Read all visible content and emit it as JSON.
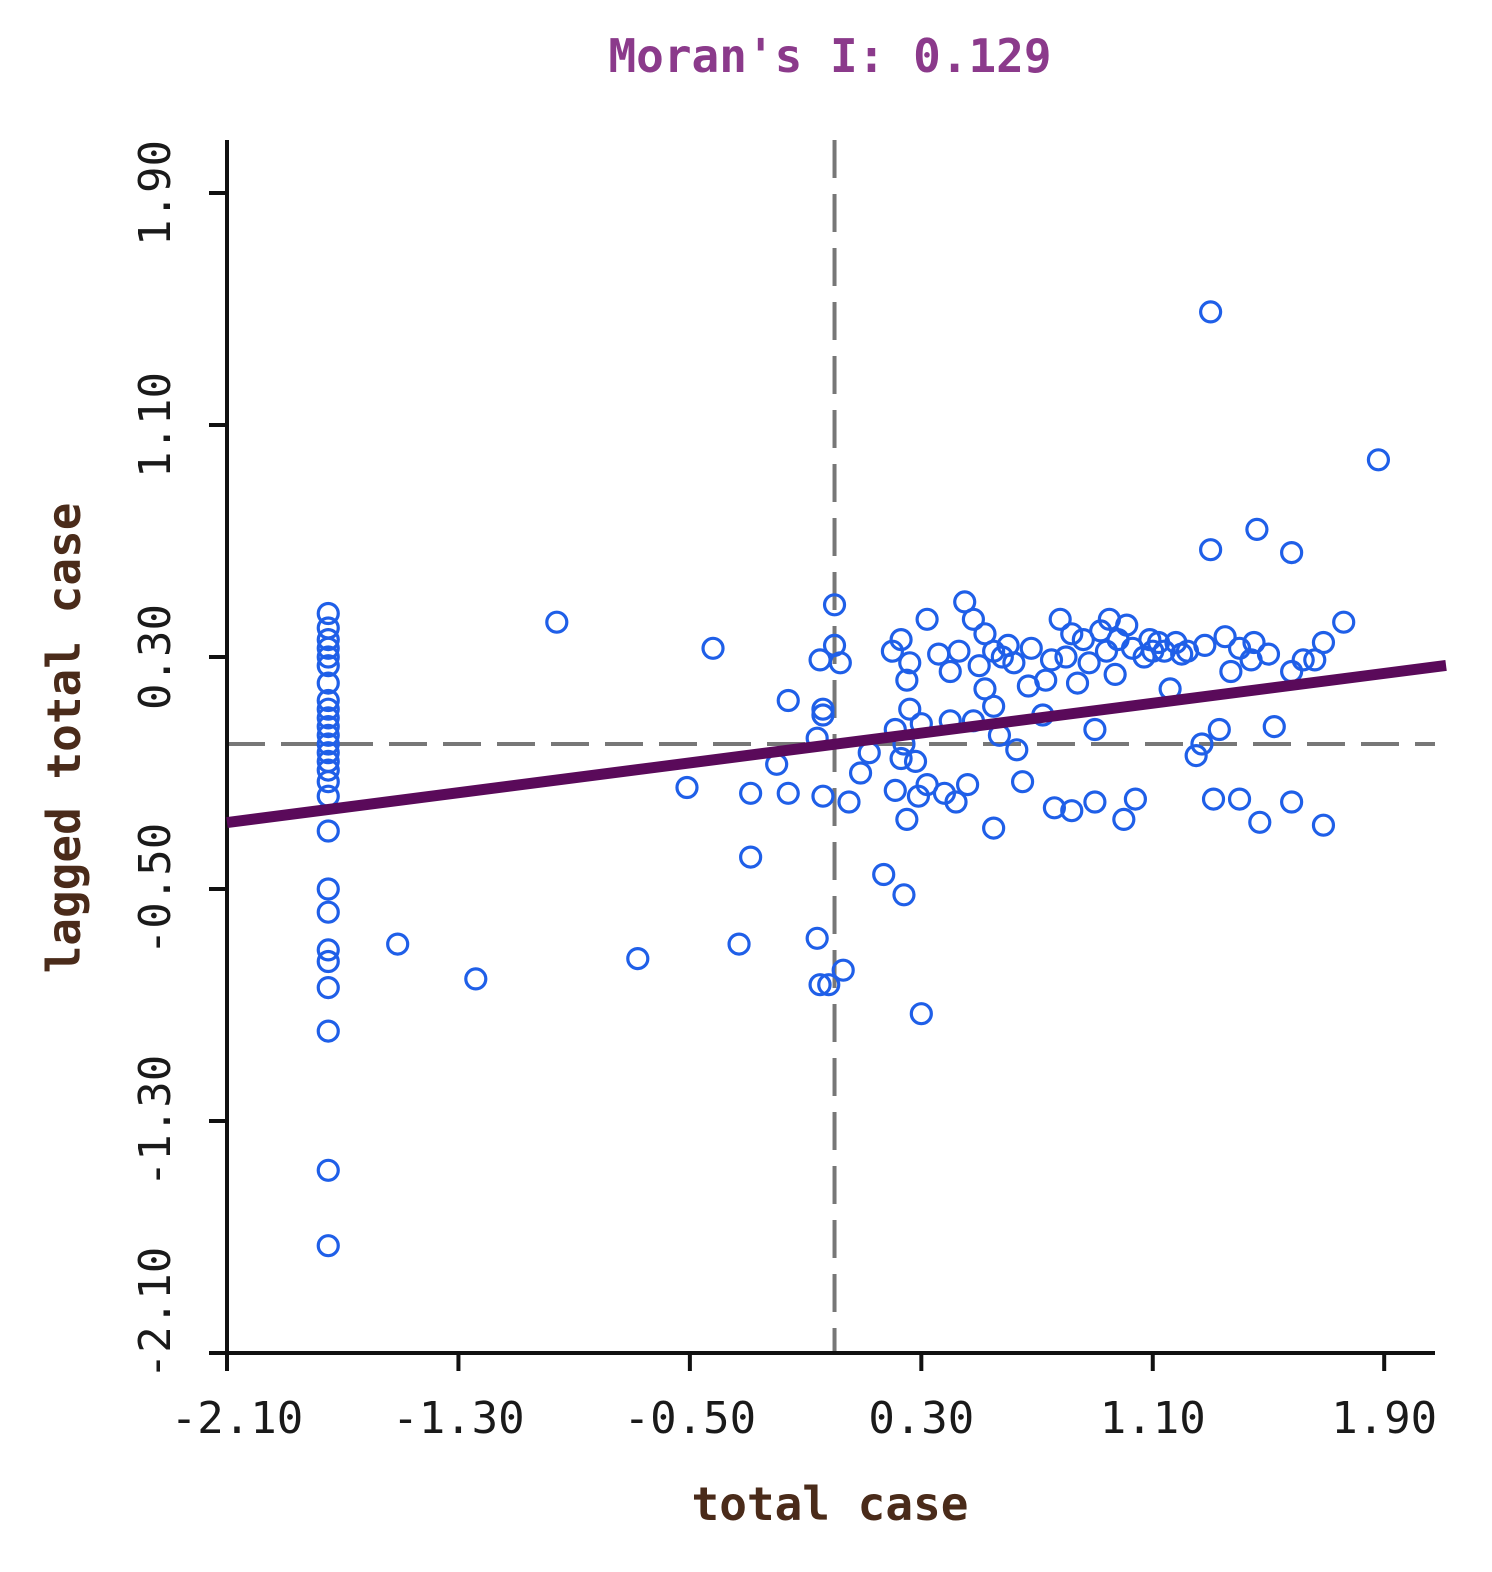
{
  "chart_data": {
    "type": "scatter",
    "title": "Moran's I: 0.129",
    "xlabel": "total case",
    "ylabel": "lagged total case",
    "xlim": [
      -2.1,
      2.1
    ],
    "ylim": [
      -2.1,
      2.1
    ],
    "x_ticks": [
      -2.1,
      -1.3,
      -0.5,
      0.3,
      1.1,
      1.9
    ],
    "x_tick_labels": [
      "-2.10",
      "-1.30",
      "-0.50",
      "0.30",
      "1.10",
      "1.90"
    ],
    "y_ticks": [
      -2.1,
      -1.3,
      -0.5,
      0.3,
      1.1,
      1.9
    ],
    "y_tick_labels": [
      "-2.10",
      "-1.30",
      "-0.50",
      "0.30",
      "1.10",
      "1.90"
    ],
    "slope": 0.129,
    "mean_x": 0.0,
    "mean_y": 0.0,
    "colors": {
      "points": "#1f5fe8",
      "regression": "#5a0a5a",
      "reference": "#777777",
      "axis": "#111111",
      "title": "#8b3a8b"
    },
    "points": [
      [
        -1.75,
        0.45
      ],
      [
        -1.75,
        0.4
      ],
      [
        -1.75,
        0.36
      ],
      [
        -1.75,
        0.33
      ],
      [
        -1.75,
        0.3
      ],
      [
        -1.75,
        0.27
      ],
      [
        -1.75,
        0.21
      ],
      [
        -1.75,
        0.15
      ],
      [
        -1.75,
        0.12
      ],
      [
        -1.75,
        0.09
      ],
      [
        -1.75,
        0.06
      ],
      [
        -1.75,
        0.03
      ],
      [
        -1.75,
        0.0
      ],
      [
        -1.75,
        -0.03
      ],
      [
        -1.75,
        -0.06
      ],
      [
        -1.75,
        -0.09
      ],
      [
        -1.75,
        -0.13
      ],
      [
        -1.75,
        -0.18
      ],
      [
        -1.75,
        -0.3
      ],
      [
        -1.75,
        -0.5
      ],
      [
        -1.75,
        -0.58
      ],
      [
        -1.75,
        -0.71
      ],
      [
        -1.75,
        -0.75
      ],
      [
        -1.75,
        -0.84
      ],
      [
        -1.75,
        -0.99
      ],
      [
        -1.75,
        -1.47
      ],
      [
        -1.75,
        -1.73
      ],
      [
        -1.51,
        -0.69
      ],
      [
        -1.24,
        -0.81
      ],
      [
        -0.96,
        0.42
      ],
      [
        -0.68,
        -0.74
      ],
      [
        -0.42,
        0.33
      ],
      [
        -0.51,
        -0.15
      ],
      [
        -0.33,
        -0.69
      ],
      [
        -0.29,
        -0.17
      ],
      [
        -0.29,
        -0.39
      ],
      [
        -0.2,
        -0.07
      ],
      [
        -0.16,
        -0.17
      ],
      [
        -0.16,
        0.15
      ],
      [
        -0.06,
        -0.67
      ],
      [
        -0.05,
        0.29
      ],
      [
        -0.04,
        0.12
      ],
      [
        -0.04,
        0.1
      ],
      [
        -0.04,
        -0.18
      ],
      [
        -0.06,
        0.02
      ],
      [
        -0.02,
        -0.83
      ],
      [
        -0.05,
        -0.83
      ],
      [
        0.0,
        0.48
      ],
      [
        0.0,
        0.34
      ],
      [
        0.02,
        0.28
      ],
      [
        0.03,
        -0.78
      ],
      [
        0.05,
        -0.2
      ],
      [
        0.09,
        -0.1
      ],
      [
        0.12,
        -0.03
      ],
      [
        0.17,
        -0.45
      ],
      [
        0.24,
        -0.52
      ],
      [
        0.26,
        0.12
      ],
      [
        0.26,
        0.28
      ],
      [
        0.23,
        0.36
      ],
      [
        0.25,
        0.22
      ],
      [
        0.23,
        -0.05
      ],
      [
        0.21,
        -0.16
      ],
      [
        0.25,
        -0.26
      ],
      [
        0.2,
        0.32
      ],
      [
        0.21,
        0.05
      ],
      [
        0.24,
        0.0
      ],
      [
        0.29,
        -0.18
      ],
      [
        0.3,
        -0.93
      ],
      [
        0.32,
        0.43
      ],
      [
        0.28,
        -0.06
      ],
      [
        0.3,
        0.07
      ],
      [
        0.32,
        -0.14
      ],
      [
        0.36,
        0.31
      ],
      [
        0.4,
        0.08
      ],
      [
        0.43,
        0.32
      ],
      [
        0.45,
        0.49
      ],
      [
        0.4,
        0.25
      ],
      [
        0.38,
        -0.17
      ],
      [
        0.42,
        -0.2
      ],
      [
        0.46,
        -0.14
      ],
      [
        0.48,
        0.43
      ],
      [
        0.48,
        0.08
      ],
      [
        0.5,
        0.27
      ],
      [
        0.52,
        0.19
      ],
      [
        0.52,
        0.38
      ],
      [
        0.55,
        0.32
      ],
      [
        0.55,
        -0.29
      ],
      [
        0.55,
        0.13
      ],
      [
        0.57,
        0.03
      ],
      [
        0.58,
        0.3
      ],
      [
        0.6,
        0.34
      ],
      [
        0.62,
        0.28
      ],
      [
        0.63,
        -0.02
      ],
      [
        0.65,
        -0.13
      ],
      [
        0.67,
        0.2
      ],
      [
        0.68,
        0.33
      ],
      [
        0.72,
        0.1
      ],
      [
        0.73,
        0.22
      ],
      [
        0.75,
        0.29
      ],
      [
        0.76,
        -0.22
      ],
      [
        0.78,
        0.43
      ],
      [
        0.8,
        0.3
      ],
      [
        0.82,
        0.38
      ],
      [
        0.82,
        -0.23
      ],
      [
        0.84,
        0.21
      ],
      [
        0.86,
        0.36
      ],
      [
        0.88,
        0.28
      ],
      [
        0.9,
        -0.2
      ],
      [
        0.9,
        0.05
      ],
      [
        0.92,
        0.39
      ],
      [
        0.94,
        0.32
      ],
      [
        0.95,
        0.43
      ],
      [
        0.97,
        0.24
      ],
      [
        0.98,
        0.36
      ],
      [
        1.0,
        -0.26
      ],
      [
        1.01,
        0.41
      ],
      [
        1.03,
        0.33
      ],
      [
        1.04,
        -0.19
      ],
      [
        1.07,
        0.3
      ],
      [
        1.09,
        0.36
      ],
      [
        1.1,
        0.32
      ],
      [
        1.12,
        0.35
      ],
      [
        1.14,
        0.32
      ],
      [
        1.16,
        0.19
      ],
      [
        1.18,
        0.35
      ],
      [
        1.2,
        0.31
      ],
      [
        1.22,
        0.32
      ],
      [
        1.25,
        -0.04
      ],
      [
        1.27,
        0.0
      ],
      [
        1.28,
        0.34
      ],
      [
        1.3,
        0.67
      ],
      [
        1.3,
        1.49
      ],
      [
        1.31,
        -0.19
      ],
      [
        1.33,
        0.05
      ],
      [
        1.35,
        0.37
      ],
      [
        1.37,
        0.25
      ],
      [
        1.4,
        0.33
      ],
      [
        1.4,
        -0.19
      ],
      [
        1.44,
        0.29
      ],
      [
        1.45,
        0.35
      ],
      [
        1.46,
        0.74
      ],
      [
        1.47,
        -0.27
      ],
      [
        1.5,
        0.31
      ],
      [
        1.52,
        0.06
      ],
      [
        1.58,
        0.25
      ],
      [
        1.58,
        0.66
      ],
      [
        1.58,
        -0.2
      ],
      [
        1.62,
        0.29
      ],
      [
        1.66,
        0.29
      ],
      [
        1.69,
        -0.28
      ],
      [
        1.69,
        0.35
      ],
      [
        1.76,
        0.42
      ],
      [
        1.88,
        0.98
      ]
    ]
  }
}
